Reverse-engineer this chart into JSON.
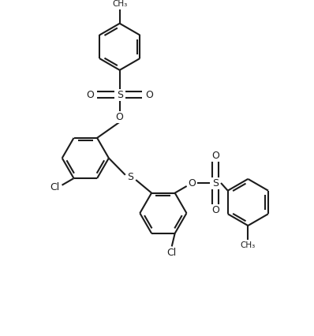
{
  "bg": "#ffffff",
  "lc": "#1c1c1c",
  "lw": 1.5,
  "fs": 9.0,
  "fs_small": 7.5,
  "figsize": [
    3.98,
    4.26
  ],
  "dpi": 100,
  "ring_r": 0.75,
  "dbo_ratio": 0.12,
  "xlim": [
    0,
    10
  ],
  "ylim": [
    0,
    10.7
  ]
}
